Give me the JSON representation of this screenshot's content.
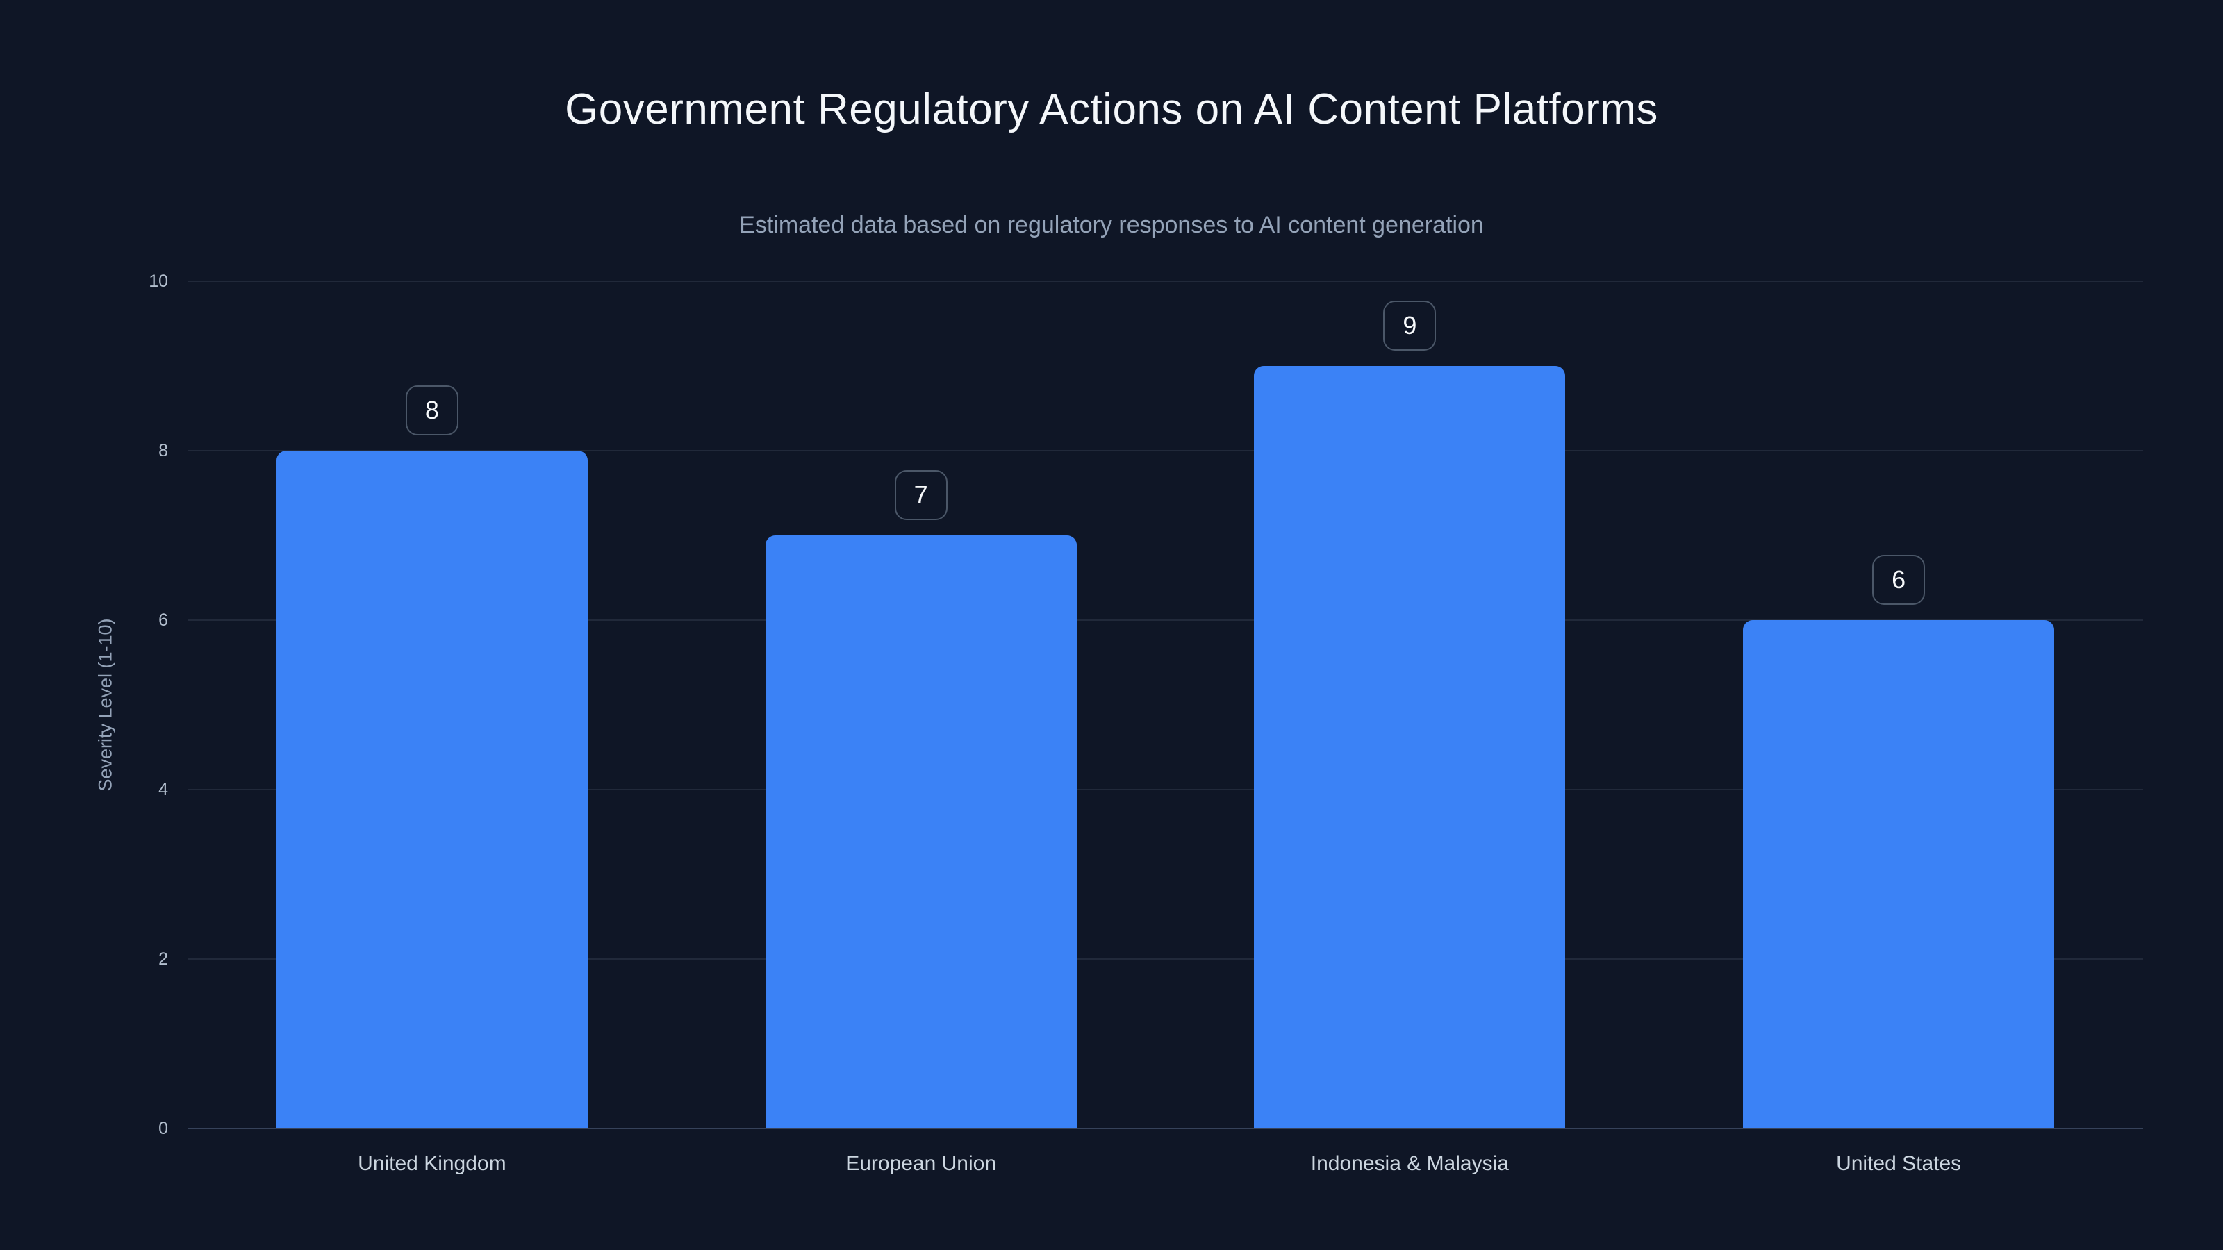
{
  "chart_data": {
    "type": "bar",
    "title": "Government Regulatory Actions on AI Content Platforms",
    "subtitle": "Estimated data based on regulatory responses to AI content generation",
    "categories": [
      "United Kingdom",
      "European Union",
      "Indonesia & Malaysia",
      "United States"
    ],
    "values": [
      8,
      7,
      9,
      6
    ],
    "xlabel": "",
    "ylabel": "Severity Level (1-10)",
    "ylim": [
      0,
      10
    ],
    "yticks": [
      0,
      2,
      4,
      6,
      8,
      10
    ],
    "grid": true,
    "legend": false,
    "bar_color": "#3b82f6",
    "colors": {
      "background": "#0f1626",
      "title_text": "#f4f7fa",
      "subtitle_text": "#94a3b8",
      "tick_text": "#b3bfce",
      "category_text": "#ccd6e0",
      "gridline": "rgba(148,163,184,0.14)",
      "axis_line": "#36425a",
      "badge_border": "#4b5768",
      "badge_text": "#f8fafc"
    }
  }
}
